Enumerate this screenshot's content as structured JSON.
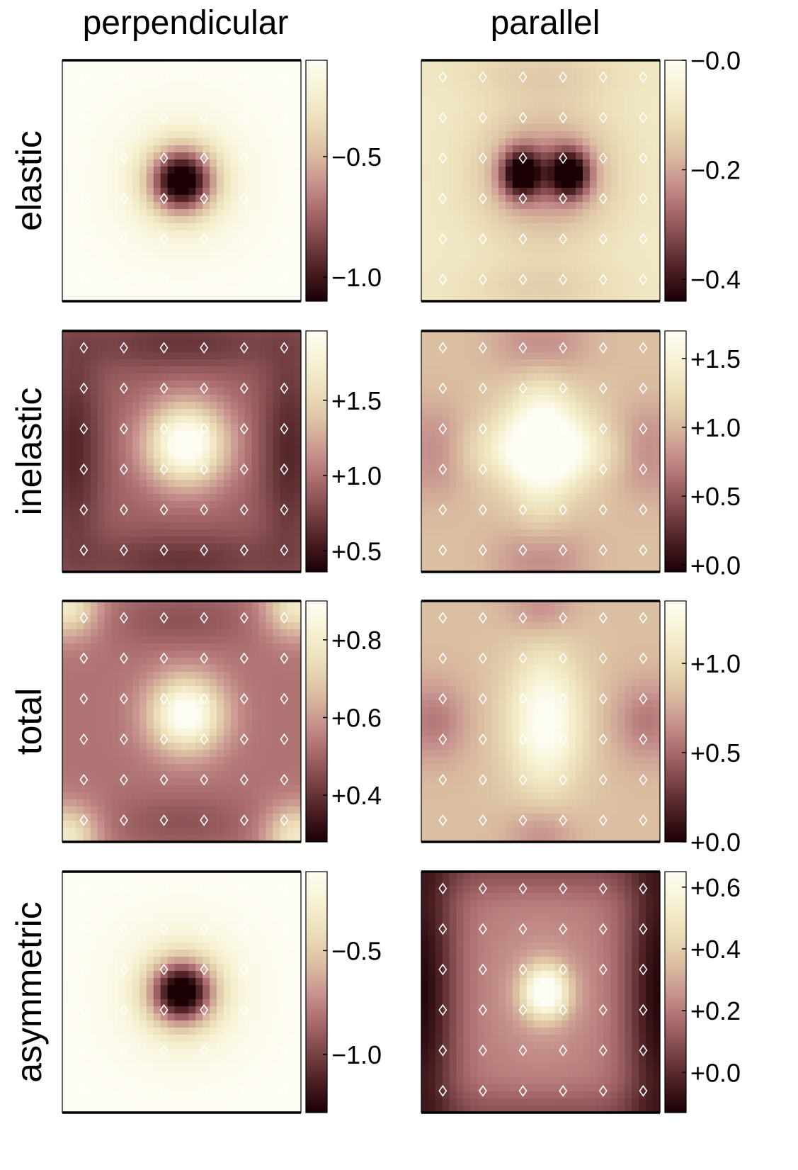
{
  "columns": [
    "perpendicular",
    "parallel"
  ],
  "rows": [
    "elastic",
    "inelastic",
    "total",
    "asymmetric"
  ],
  "colors": {
    "colormap": [
      "#1a0005",
      "#4a1e22",
      "#7a4548",
      "#a96a6c",
      "#c99690",
      "#dcc1a3",
      "#ecdfb9",
      "#f7f2d4",
      "#fefdf4"
    ],
    "marker": "#ffffff",
    "frame": "#000000"
  },
  "chart_data": [
    {
      "type": "heatmap",
      "row": "elastic",
      "column": "perpendicular",
      "colorbar_range": [
        -1.1,
        -0.1
      ],
      "colorbar_ticks": [
        "−0.5",
        "−1.0"
      ],
      "pattern": "central-minimum"
    },
    {
      "type": "heatmap",
      "row": "elastic",
      "column": "parallel",
      "colorbar_range": [
        -0.44,
        0.0
      ],
      "colorbar_ticks": [
        "−0.0",
        "−0.2",
        "−0.4"
      ],
      "pattern": "two-minima-horizontal"
    },
    {
      "type": "heatmap",
      "row": "inelastic",
      "column": "perpendicular",
      "colorbar_range": [
        0.36,
        1.96
      ],
      "colorbar_ticks": [
        "+1.5",
        "+1.0",
        "+0.5"
      ],
      "pattern": "central-maximum-square"
    },
    {
      "type": "heatmap",
      "row": "inelastic",
      "column": "parallel",
      "colorbar_range": [
        -0.05,
        1.7
      ],
      "colorbar_ticks": [
        "+1.5",
        "+1.0",
        "+0.5",
        "+0.0"
      ],
      "pattern": "central-maximum-cross"
    },
    {
      "type": "heatmap",
      "row": "total",
      "column": "perpendicular",
      "colorbar_range": [
        0.28,
        0.9
      ],
      "colorbar_ticks": [
        "+0.8",
        "+0.6",
        "+0.4"
      ],
      "pattern": "central-maximum-corners"
    },
    {
      "type": "heatmap",
      "row": "total",
      "column": "parallel",
      "colorbar_range": [
        0.0,
        1.35
      ],
      "colorbar_ticks": [
        "+1.0",
        "+0.5",
        "+0.0"
      ],
      "pattern": "central-maximum-vertical"
    },
    {
      "type": "heatmap",
      "row": "asymmetric",
      "column": "perpendicular",
      "colorbar_range": [
        -1.28,
        -0.12
      ],
      "colorbar_ticks": [
        "−0.5",
        "−1.0"
      ],
      "pattern": "central-minimum"
    },
    {
      "type": "heatmap",
      "row": "asymmetric",
      "column": "parallel",
      "colorbar_range": [
        -0.13,
        0.65
      ],
      "colorbar_ticks": [
        "+0.6",
        "+0.4",
        "+0.2",
        "+0.0"
      ],
      "pattern": "central-maximum-dark-edges"
    }
  ]
}
